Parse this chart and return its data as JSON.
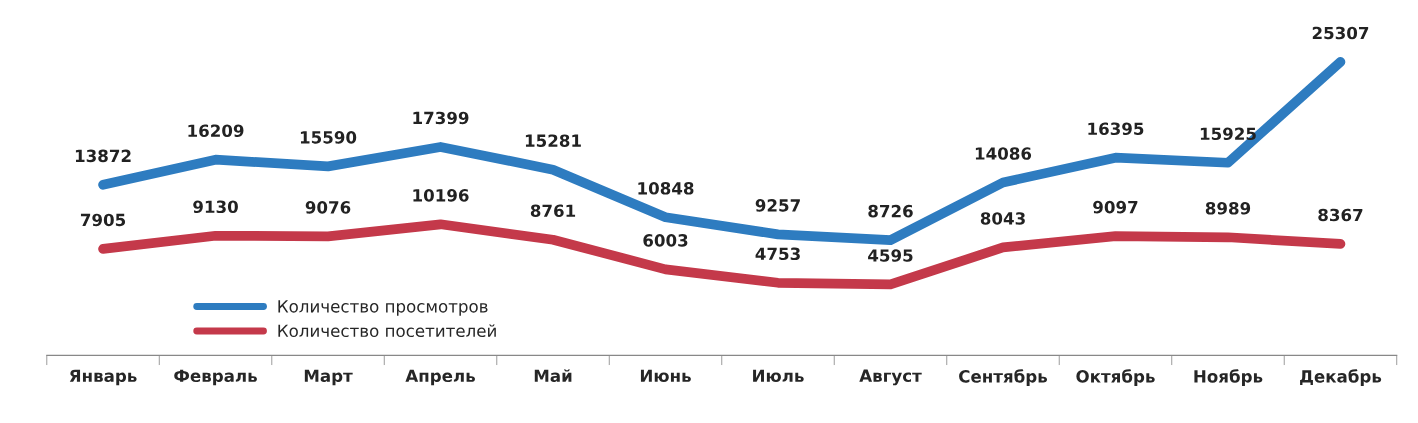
{
  "chart_data": {
    "type": "line",
    "categories": [
      "Январь",
      "Февраль",
      "Март",
      "Апрель",
      "Май",
      "Июнь",
      "Июль",
      "Август",
      "Сентябрь",
      "Октябрь",
      "Ноябрь",
      "Декабрь"
    ],
    "series": [
      {
        "name": "Количество просмотров",
        "color": "#2e7cc0",
        "values": [
          13872,
          16209,
          15590,
          17399,
          15281,
          10848,
          9257,
          8726,
          14086,
          16395,
          15925,
          25307
        ]
      },
      {
        "name": "Количество посетителей",
        "color": "#c4394a",
        "values": [
          7905,
          9130,
          9076,
          10196,
          8761,
          6003,
          4753,
          4595,
          8043,
          9097,
          8989,
          8367
        ]
      }
    ],
    "data_labels": true,
    "legend": "bottom left",
    "tick_labels": "x",
    "grid": false
  }
}
